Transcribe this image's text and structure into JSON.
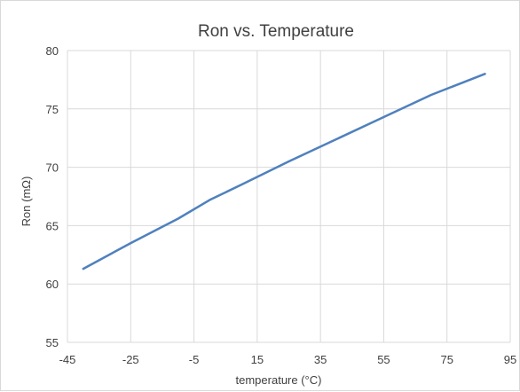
{
  "chart_data": {
    "type": "line",
    "title": "Ron vs. Temperature",
    "xlabel": "temperature (°C)",
    "ylabel": "Ron (mΩ)",
    "xlim": [
      -45,
      95
    ],
    "ylim": [
      55,
      80
    ],
    "x_ticks": [
      -45,
      -25,
      -5,
      15,
      35,
      55,
      75,
      95
    ],
    "y_ticks": [
      55,
      60,
      65,
      70,
      75,
      80
    ],
    "grid": true,
    "legend": "none",
    "series": [
      {
        "color": "#4f81bd",
        "x": [
          -40,
          -25,
          -10,
          0,
          10,
          25,
          40,
          55,
          70,
          87
        ],
        "y": [
          61.3,
          63.5,
          65.6,
          67.2,
          68.5,
          70.5,
          72.4,
          74.3,
          76.2,
          78.0
        ]
      }
    ]
  }
}
